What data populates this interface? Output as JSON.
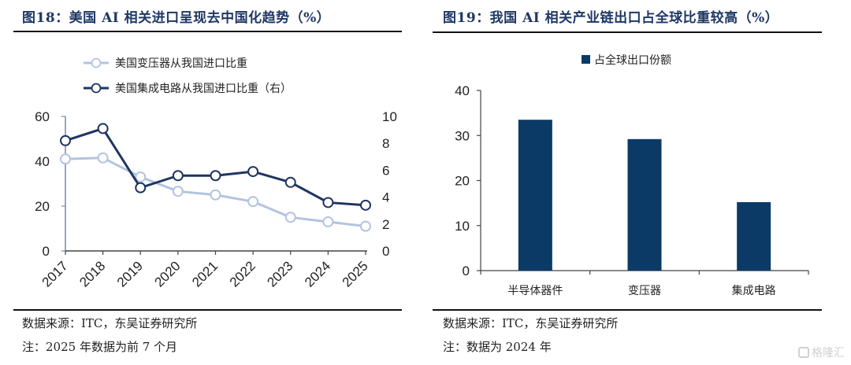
{
  "figures": {
    "left": {
      "title": "图18：美国 AI 相关进口呈现去中国化趋势（%）",
      "source": "数据来源：ITC，东吴证券研究所",
      "note": "注：2025 年数据为前 7 个月"
    },
    "right": {
      "title": "图19：我国 AI 相关产业链出口占全球比重较高（%）",
      "source": "数据来源：ITC，东吴证券研究所",
      "note": "注：数据为 2024 年"
    }
  },
  "watermark": "格隆汇",
  "colors": {
    "title": "#1f3864",
    "series_light": "#b4c3e0",
    "series_dark": "#1f3560",
    "bar": "#0b3a66"
  },
  "chart_data": [
    {
      "type": "line",
      "title": "美国 AI 相关进口呈现去中国化趋势（%）",
      "x": [
        "2017",
        "2018",
        "2019",
        "2020",
        "2021",
        "2022",
        "2023",
        "2024",
        "2025"
      ],
      "series": [
        {
          "name": "美国变压器从我国进口比重",
          "axis": "left",
          "values": [
            41,
            41.5,
            33,
            26.6,
            25,
            22,
            15,
            13,
            11
          ]
        },
        {
          "name": "美国集成电路从我国进口比重（右）",
          "axis": "right",
          "values": [
            8.2,
            9.1,
            4.7,
            5.6,
            5.6,
            5.9,
            5.1,
            3.6,
            3.4
          ]
        }
      ],
      "ylim_left": [
        0,
        60
      ],
      "yticks_left": [
        "0",
        "20",
        "40",
        "60"
      ],
      "ylim_right": [
        0,
        10
      ],
      "yticks_right": [
        "0",
        "2",
        "4",
        "6",
        "8",
        "10"
      ],
      "legend": "top",
      "grid": false
    },
    {
      "type": "bar",
      "title": "我国 AI 相关产业链出口占全球比重较高（%）",
      "categories": [
        "半导体器件",
        "变压器",
        "集成电路"
      ],
      "series": [
        {
          "name": "占全球出口份额",
          "values": [
            33.5,
            29.2,
            15.2
          ]
        }
      ],
      "ylim": [
        0,
        40
      ],
      "yticks": [
        "0",
        "10",
        "20",
        "30",
        "40"
      ],
      "legend": "top",
      "grid": false
    }
  ]
}
